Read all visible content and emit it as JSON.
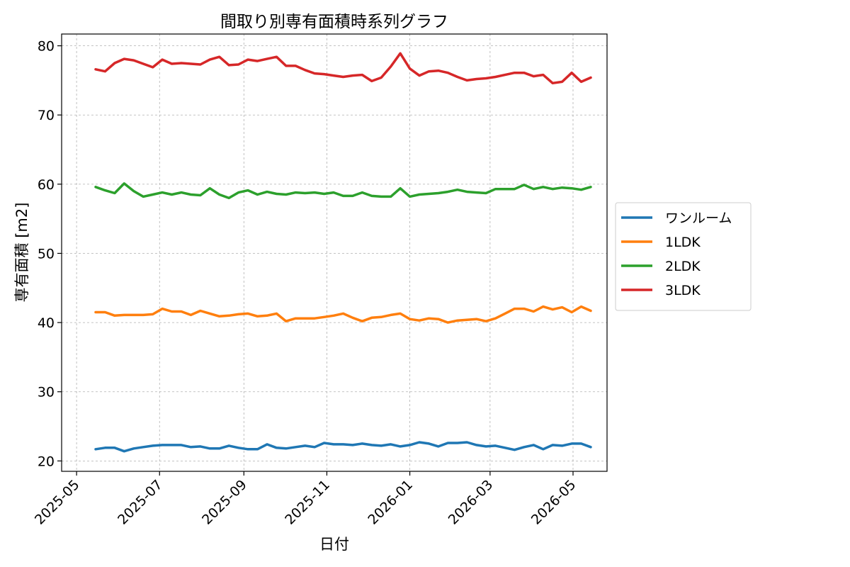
{
  "chart_data": {
    "type": "line",
    "title": "間取り別専有面積時系列グラフ",
    "xlabel": "日付",
    "ylabel": "専有面積 [m2]",
    "xlim": [
      "2025-04-20",
      "2026-05-26"
    ],
    "ylim": [
      18.5,
      81.7
    ],
    "x_ticks": [
      "2025-05-01",
      "2025-07-01",
      "2025-09-01",
      "2025-11-01",
      "2026-01-01",
      "2026-03-01",
      "2026-05-01"
    ],
    "x_tick_labels": [
      "2025-05",
      "2025-07",
      "2025-09",
      "2025-11",
      "2026-01",
      "2026-03",
      "2026-05"
    ],
    "y_ticks": [
      20,
      30,
      40,
      50,
      60,
      70,
      80
    ],
    "y_tick_labels": [
      "20",
      "30",
      "40",
      "50",
      "60",
      "70",
      "80"
    ],
    "grid": true,
    "legend_position": "right-outside",
    "x_start": "2025-05-15",
    "x_step_days": 7,
    "series": [
      {
        "name": "ワンルーム",
        "color": "#1f77b4",
        "values": [
          21.7,
          21.9,
          21.9,
          21.4,
          21.8,
          22.0,
          22.2,
          22.3,
          22.3,
          22.3,
          22.0,
          22.1,
          21.8,
          21.8,
          22.2,
          21.9,
          21.7,
          21.7,
          22.4,
          21.9,
          21.8,
          22.0,
          22.2,
          22.0,
          22.6,
          22.4,
          22.4,
          22.3,
          22.5,
          22.3,
          22.2,
          22.4,
          22.1,
          22.3,
          22.7,
          22.5,
          22.1,
          22.6,
          22.6,
          22.7,
          22.3,
          22.1,
          22.2,
          21.9,
          21.6,
          22.0,
          22.3,
          21.7,
          22.3,
          22.2,
          22.5,
          22.5,
          22.0
        ]
      },
      {
        "name": "1LDK",
        "color": "#ff7f0e",
        "values": [
          41.5,
          41.5,
          41.0,
          41.1,
          41.1,
          41.1,
          41.2,
          42.0,
          41.6,
          41.6,
          41.1,
          41.7,
          41.3,
          40.9,
          41.0,
          41.2,
          41.3,
          40.9,
          41.0,
          41.3,
          40.2,
          40.6,
          40.6,
          40.6,
          40.8,
          41.0,
          41.3,
          40.7,
          40.2,
          40.7,
          40.8,
          41.1,
          41.3,
          40.5,
          40.3,
          40.6,
          40.5,
          40.0,
          40.3,
          40.4,
          40.5,
          40.2,
          40.6,
          41.3,
          42.0,
          42.0,
          41.6,
          42.3,
          41.9,
          42.2,
          41.5,
          42.3,
          41.7
        ]
      },
      {
        "name": "2LDK",
        "color": "#2ca02c",
        "values": [
          59.6,
          59.1,
          58.7,
          60.1,
          59.0,
          58.2,
          58.5,
          58.8,
          58.5,
          58.8,
          58.5,
          58.4,
          59.4,
          58.5,
          58.0,
          58.8,
          59.1,
          58.5,
          58.9,
          58.6,
          58.5,
          58.8,
          58.7,
          58.8,
          58.6,
          58.8,
          58.3,
          58.3,
          58.8,
          58.3,
          58.2,
          58.2,
          59.4,
          58.2,
          58.5,
          58.6,
          58.7,
          58.9,
          59.2,
          58.9,
          58.8,
          58.7,
          59.3,
          59.3,
          59.3,
          59.9,
          59.3,
          59.6,
          59.3,
          59.5,
          59.4,
          59.2,
          59.6
        ]
      },
      {
        "name": "3LDK",
        "color": "#d62728",
        "values": [
          76.6,
          76.3,
          77.5,
          78.1,
          77.9,
          77.4,
          76.9,
          78.0,
          77.4,
          77.5,
          77.4,
          77.3,
          78.0,
          78.4,
          77.2,
          77.3,
          78.0,
          77.8,
          78.1,
          78.4,
          77.1,
          77.1,
          76.5,
          76.0,
          75.9,
          75.7,
          75.5,
          75.7,
          75.8,
          74.9,
          75.4,
          77.0,
          78.9,
          76.7,
          75.7,
          76.3,
          76.4,
          76.1,
          75.5,
          75.0,
          75.2,
          75.3,
          75.5,
          75.8,
          76.1,
          76.1,
          75.6,
          75.8,
          74.6,
          74.8,
          76.1,
          74.8,
          75.4
        ]
      }
    ]
  }
}
